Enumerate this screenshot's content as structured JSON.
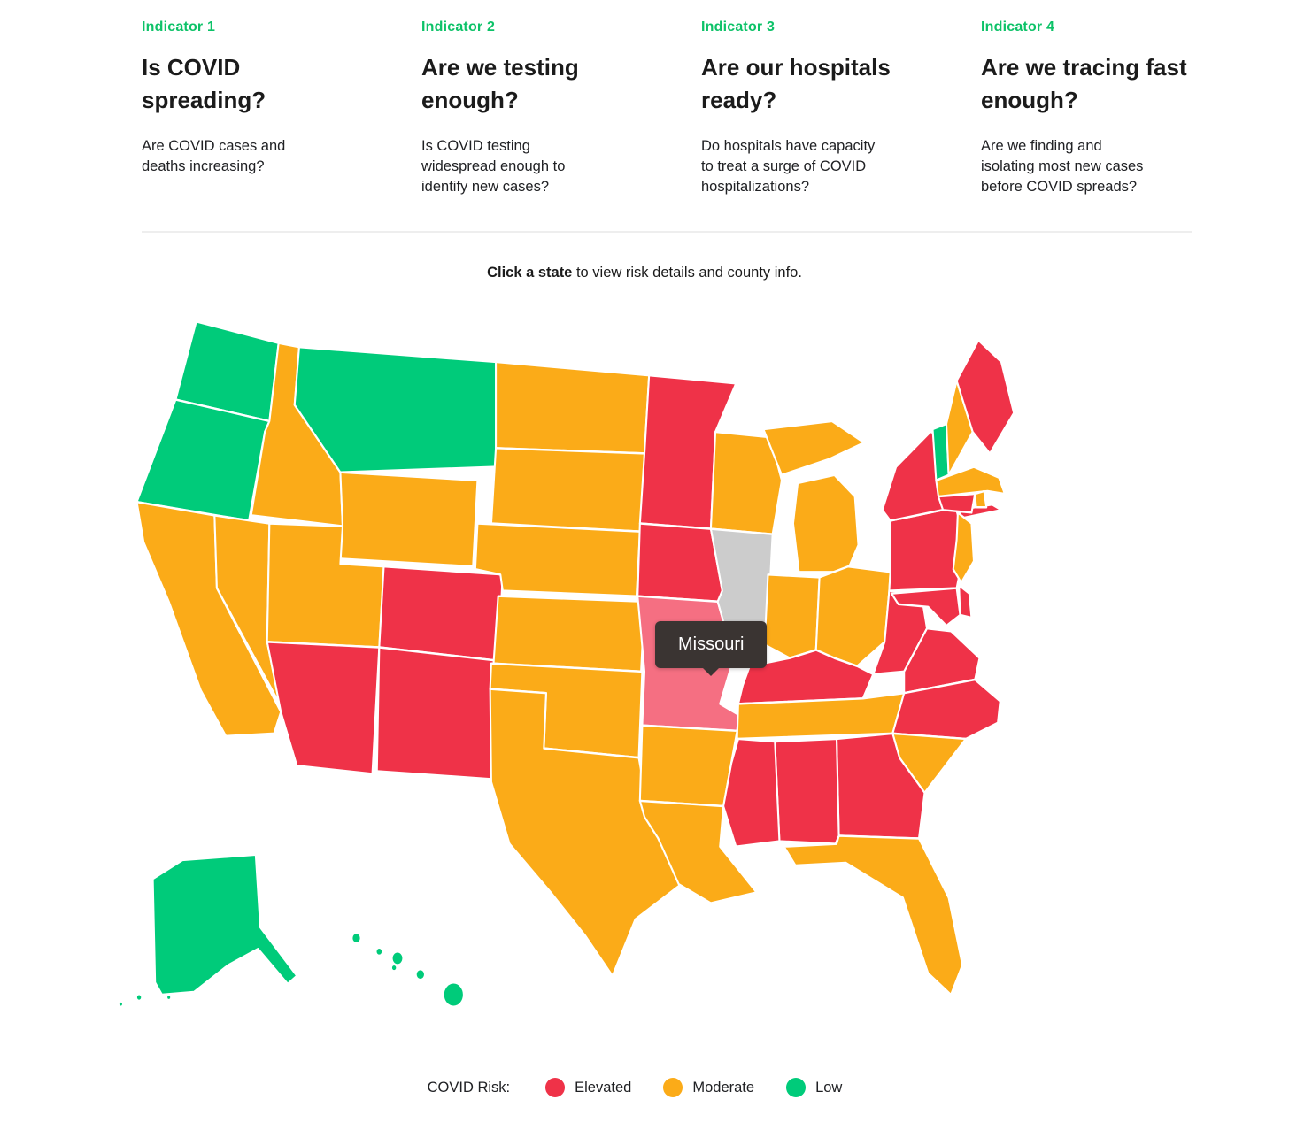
{
  "indicators": [
    {
      "label": "Indicator 1",
      "title": "Is COVID\nspreading?",
      "description": "Are COVID cases and\ndeaths increasing?"
    },
    {
      "label": "Indicator 2",
      "title": "Are we testing\nenough?",
      "description": "Is COVID testing\nwidespread enough to\nidentify new cases?"
    },
    {
      "label": "Indicator 3",
      "title": "Are our hospitals\nready?",
      "description": "Do hospitals have capacity\nto treat a surge of COVID\nhospitalizations?"
    },
    {
      "label": "Indicator 4",
      "title": "Are we tracing fast\nenough?",
      "description": "Are we finding and\nisolating most new cases\nbefore COVID spreads?"
    }
  ],
  "instruction": {
    "bold": "Click a state",
    "rest": " to view risk details and county info."
  },
  "tooltip": {
    "state": "Missouri"
  },
  "legend": {
    "label": "COVID Risk:",
    "items": [
      {
        "key": "elevated",
        "label": "Elevated",
        "color": "#EF3248"
      },
      {
        "key": "moderate",
        "label": "Moderate",
        "color": "#FBAB18"
      },
      {
        "key": "low",
        "label": "Low",
        "color": "#00CB7A"
      }
    ]
  },
  "colors": {
    "elevated": "#EF3248",
    "moderate": "#FBAB18",
    "low": "#00CB7A",
    "hover": "#F56F82",
    "indicator_label": "#0DC268",
    "tooltip_bg": "#3A3432",
    "divider": "#EEEEEE"
  },
  "map": {
    "hovered_state": "MO",
    "states": {
      "WA": "low",
      "OR": "low",
      "CA": "moderate",
      "NV": "moderate",
      "ID": "moderate",
      "MT": "low",
      "WY": "moderate",
      "UT": "moderate",
      "CO": "elevated",
      "AZ": "elevated",
      "NM": "elevated",
      "ND": "moderate",
      "SD": "moderate",
      "NE": "moderate",
      "KS": "moderate",
      "OK": "moderate",
      "TX": "moderate",
      "MN": "elevated",
      "IA": "elevated",
      "MO": "elevated",
      "AR": "moderate",
      "LA": "moderate",
      "WI": "moderate",
      "MI": "moderate",
      "IN": "moderate",
      "OH": "moderate",
      "KY": "elevated",
      "TN": "moderate",
      "MS": "elevated",
      "AL": "elevated",
      "GA": "elevated",
      "FL": "moderate",
      "SC": "moderate",
      "NC": "elevated",
      "VA": "elevated",
      "WV": "elevated",
      "MD": "elevated",
      "DE": "elevated",
      "PA": "elevated",
      "NJ": "moderate",
      "NY": "elevated",
      "CT": "elevated",
      "RI": "moderate",
      "MA": "moderate",
      "VT": "low",
      "NH": "moderate",
      "ME": "elevated",
      "AK": "low",
      "HI": "low"
    }
  }
}
